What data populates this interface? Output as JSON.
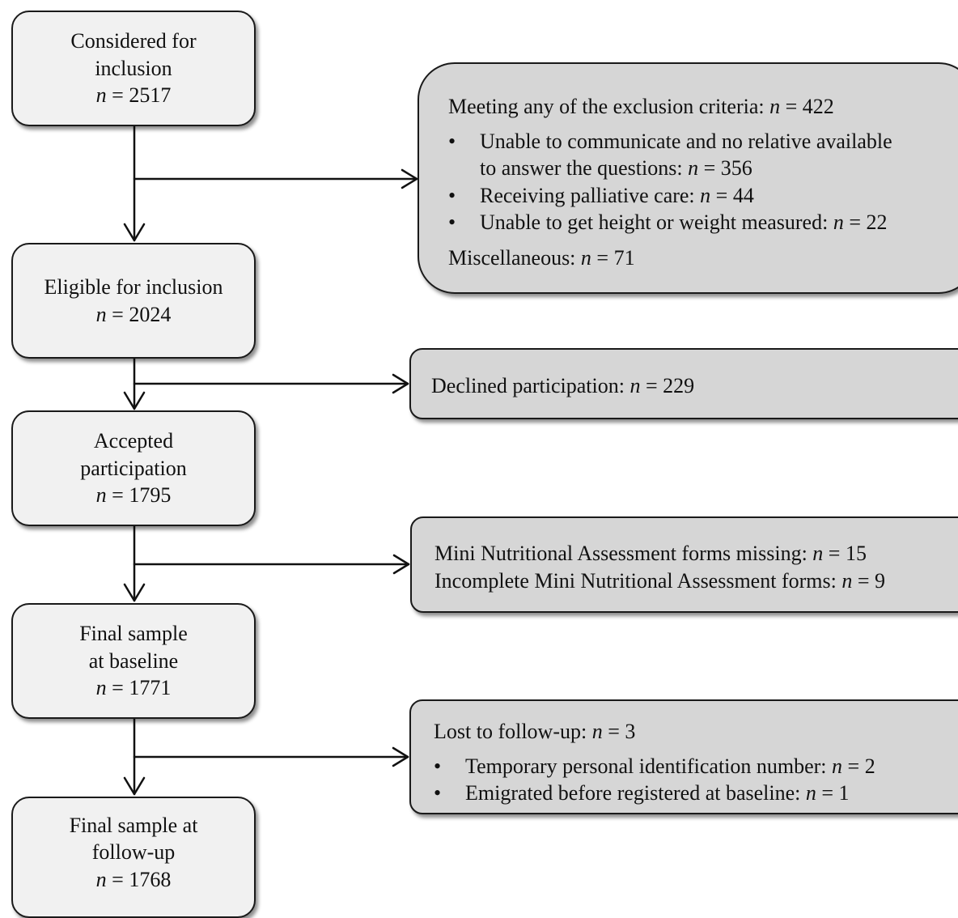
{
  "flow": {
    "considered": {
      "line1": "Considered for",
      "line2": "inclusion",
      "n_label": "n",
      "n_value": "= 2517"
    },
    "eligible": {
      "line1": "Eligible for inclusion",
      "n_label": "n",
      "n_value": "= 2024"
    },
    "accepted": {
      "line1": "Accepted",
      "line2": "participation",
      "n_label": "n",
      "n_value": "= 1795"
    },
    "baseline": {
      "line1": "Final sample",
      "line2": "at baseline",
      "n_label": "n",
      "n_value": "= 1771"
    },
    "followup": {
      "line1": "Final sample at",
      "line2": "follow-up",
      "n_label": "n",
      "n_value": "= 1768"
    }
  },
  "exclusions": {
    "criteria": {
      "heading": "Meeting any of the exclusion criteria:",
      "heading_n": "n",
      "heading_value": "= 422",
      "items": [
        {
          "line1": "Unable to communicate and no relative available",
          "line2": "to answer the questions:",
          "n": "n",
          "value": "= 356"
        },
        {
          "line1": "Receiving palliative care:",
          "n": "n",
          "value": "= 44"
        },
        {
          "line1": "Unable to get height or weight measured:",
          "n": "n",
          "value": "= 22"
        }
      ],
      "misc": "Miscellaneous:",
      "misc_n": "n",
      "misc_value": "= 71"
    },
    "declined": {
      "text": "Declined participation:",
      "n": "n",
      "value": "= 229"
    },
    "mna": {
      "line1": "Mini Nutritional Assessment forms missing:",
      "line1_n": "n",
      "line1_value": "= 15",
      "line2": "Incomplete Mini Nutritional Assessment forms:",
      "line2_n": "n",
      "line2_value": "= 9"
    },
    "lost": {
      "heading": "Lost to follow-up:",
      "heading_n": "n",
      "heading_value": "= 3",
      "items": [
        {
          "text": "Temporary personal identification number:",
          "n": "n",
          "value": "= 2"
        },
        {
          "text": "Emigrated before registered at baseline:",
          "n": "n",
          "value": "= 1"
        }
      ]
    }
  }
}
